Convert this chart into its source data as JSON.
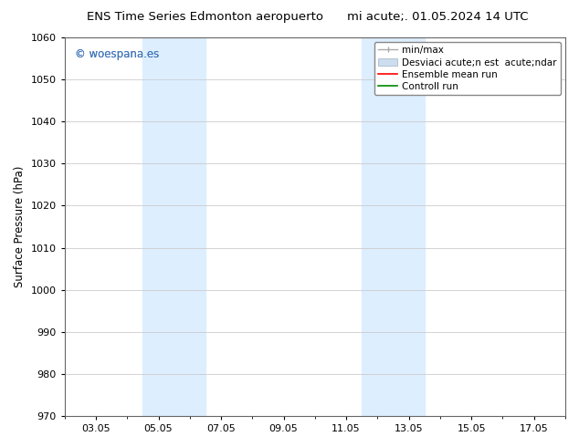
{
  "title_left": "ENS Time Series Edmonton aeropuerto",
  "title_right": "mi acute;. 01.05.2024 14 UTC",
  "ylabel": "Surface Pressure (hPa)",
  "ylim": [
    970,
    1060
  ],
  "yticks": [
    970,
    980,
    990,
    1000,
    1010,
    1020,
    1030,
    1040,
    1050,
    1060
  ],
  "xtick_labels": [
    "03.05",
    "05.05",
    "07.05",
    "09.05",
    "11.05",
    "13.05",
    "15.05",
    "17.05"
  ],
  "xtick_positions": [
    2,
    4,
    6,
    8,
    10,
    12,
    14,
    16
  ],
  "xmin": 1,
  "xmax": 17,
  "bg_color": "#ffffff",
  "plot_bg_color": "#ffffff",
  "watermark_text": "© woespana.es",
  "watermark_color": "#4477bb",
  "shaded_regions": [
    {
      "xstart": 3.5,
      "xend": 5.5,
      "color": "#ddeeff"
    },
    {
      "xstart": 10.5,
      "xend": 12.5,
      "color": "#ddeeff"
    }
  ],
  "legend_labels": [
    "min/max",
    "Desviaci acute;n est  acute;ndar",
    "Ensemble mean run",
    "Controll run"
  ],
  "legend_colors_line": [
    "#aaaaaa",
    "#ccddee",
    "#ff0000",
    "#008800"
  ],
  "grid_color": "#cccccc",
  "tick_fontsize": 8,
  "title_fontsize": 9.5,
  "ylabel_fontsize": 8.5,
  "legend_fontsize": 7.5
}
